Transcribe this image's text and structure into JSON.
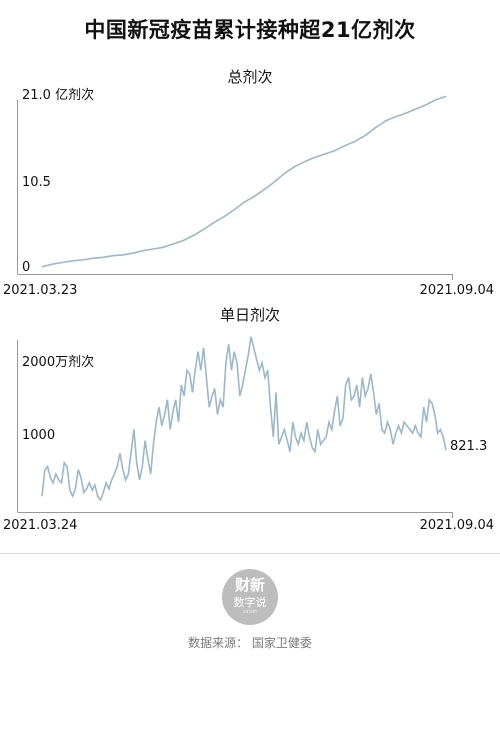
{
  "title": "中国新冠疫苗累计接种超21亿剂次",
  "colors": {
    "line": "#9ab7cc",
    "axis": "#999999",
    "text": "#111111",
    "logo_bg": "#bdbdbd"
  },
  "chart_data": [
    {
      "type": "line",
      "title": "总剂次",
      "y_top_label": "21.0 亿剂次",
      "y_ticks": [
        "10.5",
        "0"
      ],
      "ylim": [
        0,
        21.0
      ],
      "x_start_label": "2021.03.23",
      "x_end_label": "2021.09.04",
      "series": [
        {
          "values": [
            0.5,
            0.8,
            1.0,
            1.2,
            1.3,
            1.5,
            1.6,
            1.8,
            1.9,
            2.1,
            2.4,
            2.6,
            2.8,
            3.2,
            3.6,
            4.2,
            4.9,
            5.7,
            6.4,
            7.2,
            8.1,
            8.8,
            9.6,
            10.5,
            11.5,
            12.3,
            12.9,
            13.4,
            13.8,
            14.2,
            14.8,
            15.3,
            16.0,
            16.9,
            17.7,
            18.2,
            18.6,
            19.1,
            19.6,
            20.2,
            20.6
          ]
        }
      ]
    },
    {
      "type": "line",
      "title": "单日剂次",
      "y_tick_labels": [
        "2000万剂次",
        "1000"
      ],
      "y_tick_values": [
        2000,
        1000
      ],
      "ylim": [
        0,
        2550
      ],
      "x_start_label": "2021.03.24",
      "x_end_label": "2021.09.04",
      "end_value_label": "821.3",
      "series": [
        {
          "values": [
            200,
            550,
            600,
            450,
            380,
            500,
            420,
            380,
            650,
            600,
            280,
            200,
            300,
            560,
            450,
            250,
            300,
            380,
            280,
            350,
            200,
            150,
            250,
            380,
            300,
            420,
            500,
            600,
            780,
            560,
            420,
            500,
            800,
            1100,
            650,
            420,
            600,
            950,
            700,
            500,
            900,
            1200,
            1400,
            1150,
            1300,
            1500,
            1100,
            1350,
            1500,
            1200,
            1700,
            1550,
            1900,
            1850,
            1600,
            1900,
            2150,
            1900,
            2200,
            1800,
            1400,
            1550,
            1650,
            1300,
            1500,
            1400,
            2000,
            2250,
            1900,
            2150,
            2000,
            1550,
            1700,
            1900,
            2100,
            2350,
            2200,
            2050,
            1900,
            2000,
            1800,
            1900,
            1400,
            1000,
            1600,
            900,
            1000,
            1100,
            950,
            800,
            1200,
            1000,
            900,
            1050,
            950,
            1200,
            1000,
            850,
            800,
            1100,
            900,
            950,
            1000,
            1200,
            1100,
            1350,
            1550,
            1150,
            1250,
            1700,
            1800,
            1500,
            1550,
            1700,
            1400,
            1800,
            1550,
            1650,
            1850,
            1600,
            1300,
            1450,
            1100,
            1050,
            1200,
            1100,
            900,
            1050,
            1150,
            1050,
            1200,
            1150,
            1100,
            1050,
            1150,
            1050,
            1000,
            1400,
            1200,
            1500,
            1450,
            1300,
            1050,
            1100,
            1000,
            821.3
          ]
        }
      ]
    }
  ],
  "footer": {
    "logo_line1": "财新",
    "logo_line2": "数字说",
    "logo_line3": "caixin",
    "source": "数据来源：  国家卫健委"
  }
}
